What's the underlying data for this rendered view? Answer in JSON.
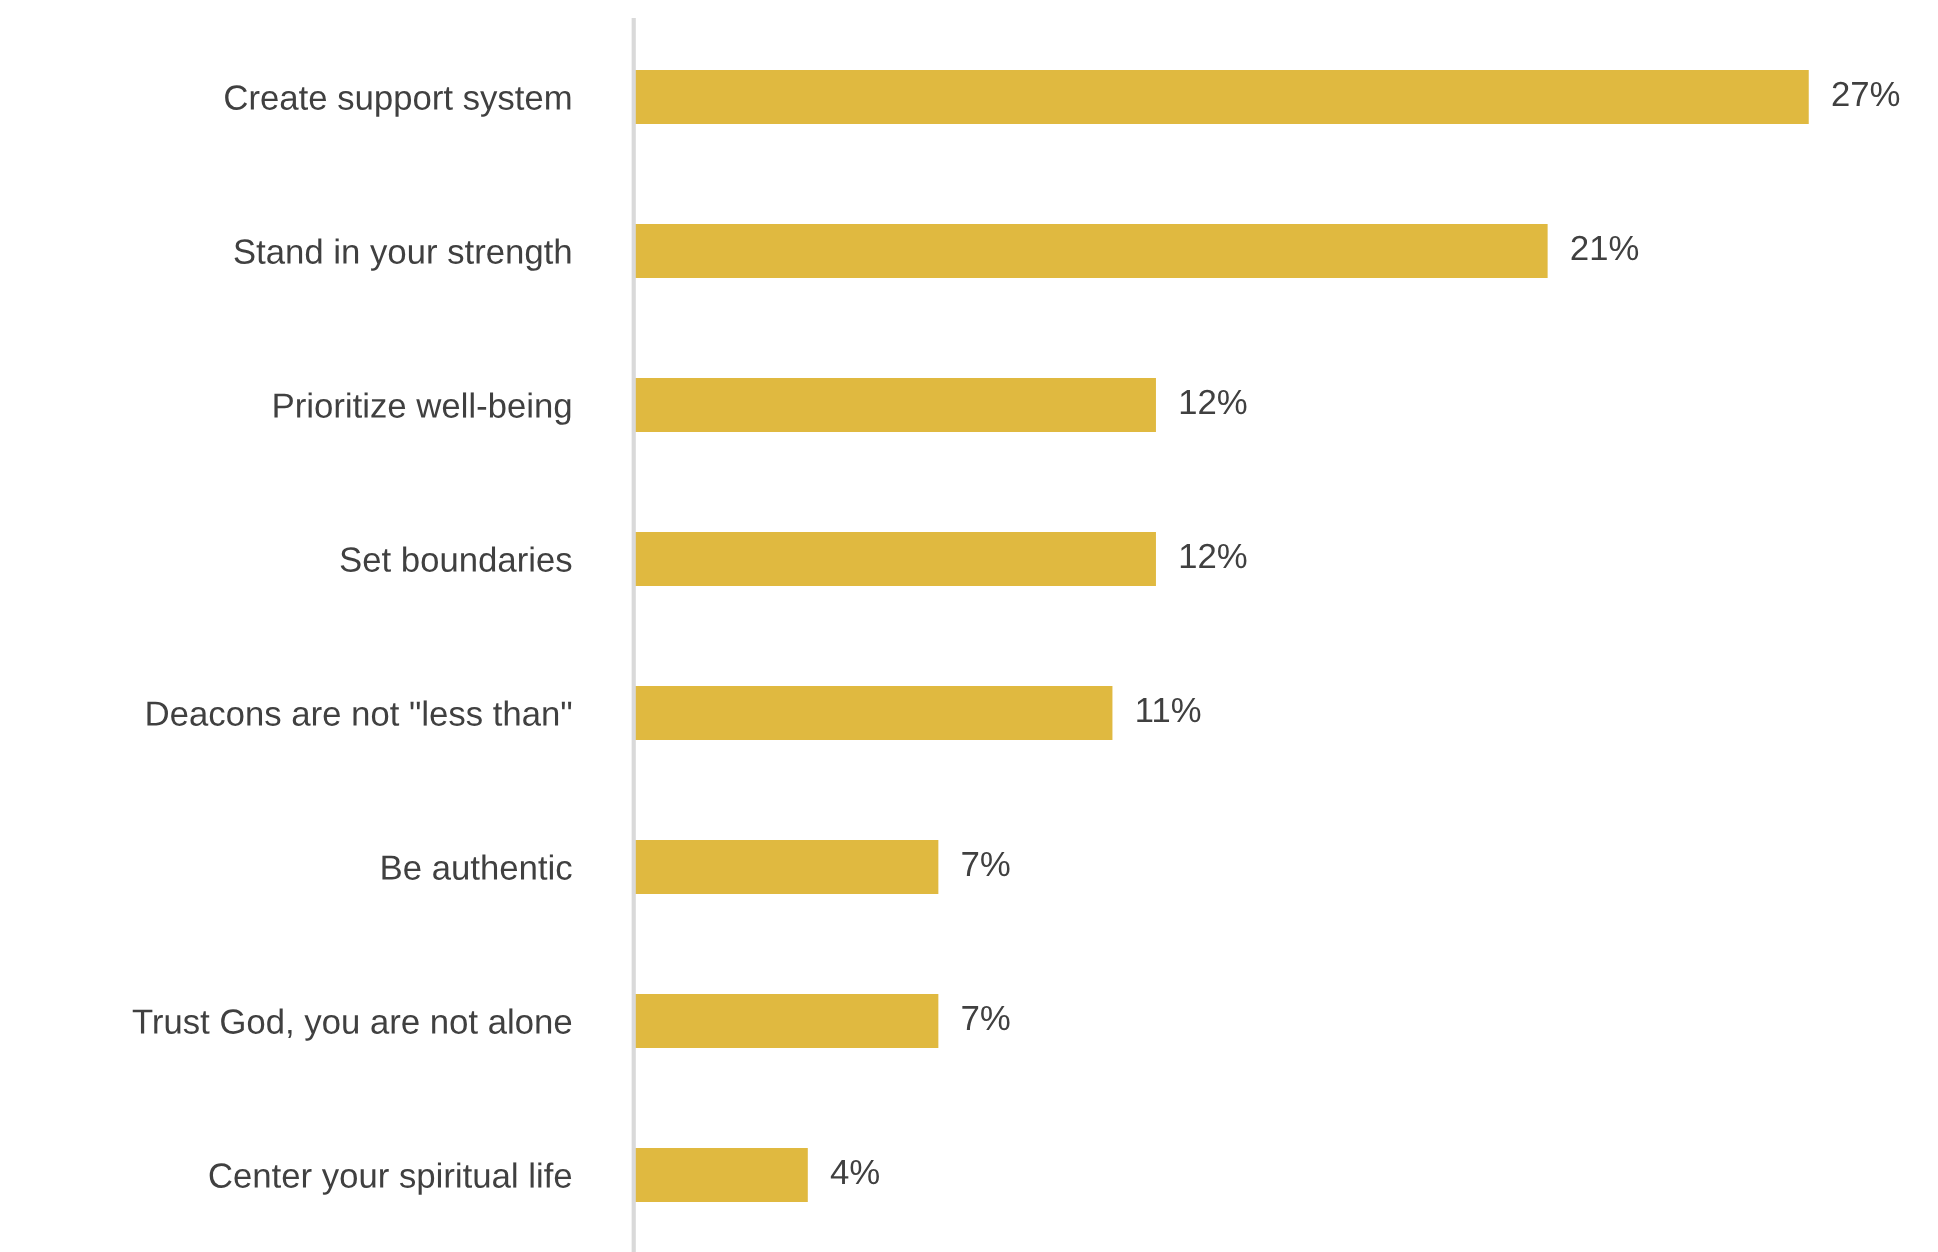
{
  "chart_data": {
    "type": "bar",
    "orientation": "horizontal",
    "categories": [
      "Create support system",
      "Stand in your strength",
      "Prioritize well-being",
      "Set boundaries",
      "Deacons are not \"less than\"",
      "Be authentic",
      "Trust God, you are not alone",
      "Center your spiritual life"
    ],
    "values": [
      27,
      21,
      12,
      12,
      11,
      7,
      7,
      4
    ],
    "value_labels": [
      "27%",
      "21%",
      "12%",
      "12%",
      "11%",
      "7%",
      "7%",
      "4%"
    ],
    "color": "#e0b940",
    "tick_labels": "y"
  }
}
